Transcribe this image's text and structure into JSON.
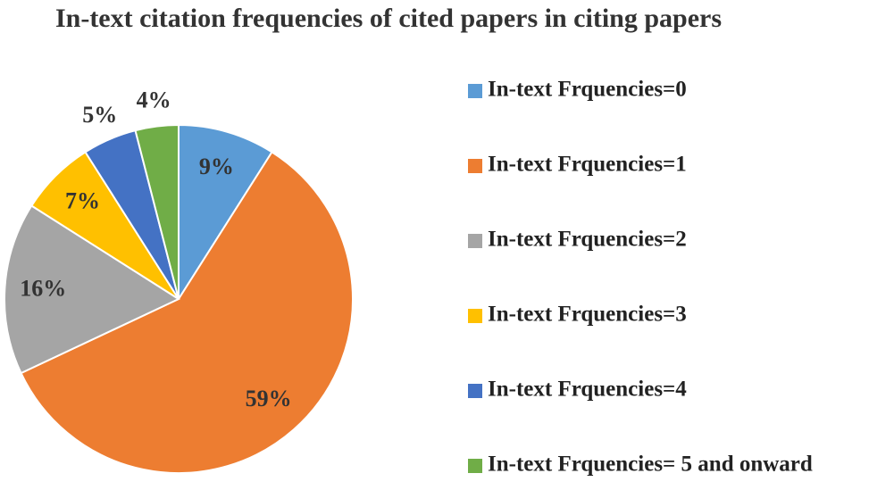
{
  "chart_data": {
    "type": "pie",
    "title": "In-text citation frequencies of cited papers in citing papers",
    "categories": [
      "In-text Frquencies=0",
      "In-text Frquencies=1",
      "In-text Frquencies=2",
      "In-text Frquencies=3",
      "In-text Frquencies=4",
      "In-text Frquencies= 5 and onward"
    ],
    "values": [
      9,
      59,
      16,
      7,
      5,
      4
    ],
    "value_labels": [
      "9%",
      "59%",
      "16%",
      "7%",
      "5%",
      "4%"
    ],
    "colors": [
      "#5b9bd5",
      "#ed7d31",
      "#a5a5a5",
      "#ffc000",
      "#4472c4",
      "#70ad47"
    ],
    "legend": "right"
  }
}
